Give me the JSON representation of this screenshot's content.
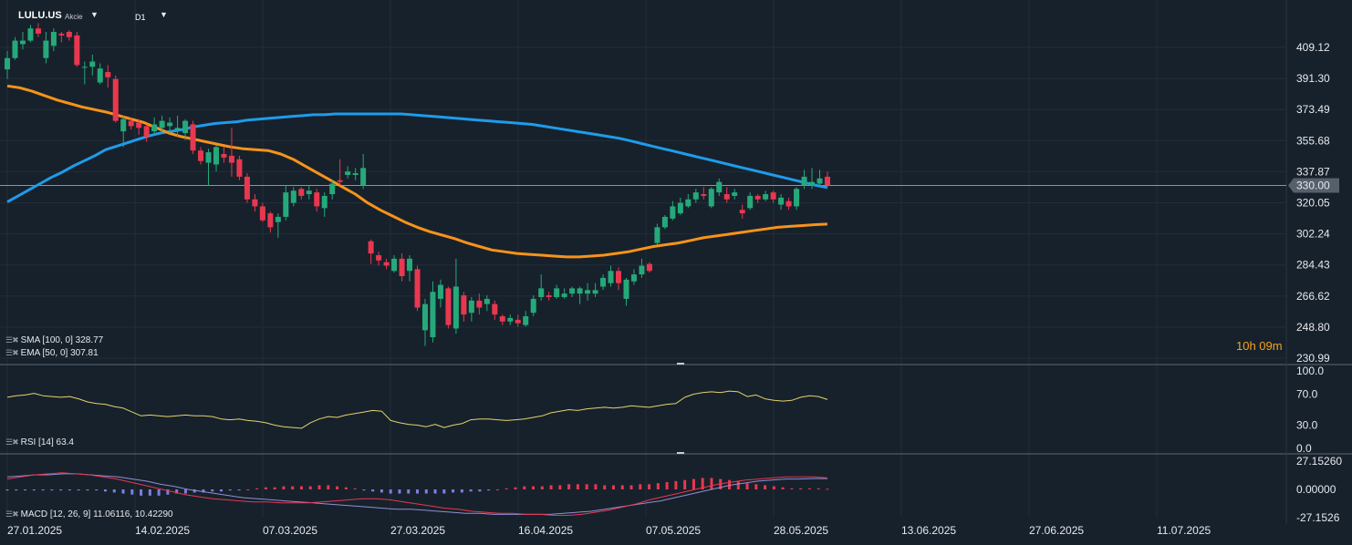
{
  "header": {
    "symbol": "LULU.US",
    "asset_type": "Akcie",
    "timeframe": "D1",
    "dropdown_glyph": "▼"
  },
  "colors": {
    "background": "#17212b",
    "up_candle": "#26a97a",
    "down_candle": "#e8384f",
    "sma": "#1e9ceb",
    "ema": "#f7931a",
    "rsi": "#e3d26f",
    "macd": "#e8384f",
    "signal": "#8e8fd6",
    "hist_pos": "#e8384f",
    "hist_neg": "#7b7fe0"
  },
  "indicators": {
    "sma": "SMA [100, 0]  328.77",
    "ema": "EMA [50, 0]  307.81",
    "rsi": "RSI [14]  63.4",
    "macd": "MACD [12, 26, 9]  11.06116,  10.42290"
  },
  "countdown": "10h 09m",
  "chart_data": [
    {
      "type": "candlestick",
      "title": "LULU.US",
      "x_tick_labels": [
        "27.01.2025",
        "14.02.2025",
        "07.03.2025",
        "27.03.2025",
        "16.04.2025",
        "07.05.2025",
        "28.05.2025",
        "13.06.2025",
        "27.06.2025",
        "11.07.2025"
      ],
      "y_tick_labels": [
        "409.12",
        "391.30",
        "373.49",
        "355.68",
        "337.87",
        "320.05",
        "302.24",
        "284.43",
        "266.62",
        "248.80",
        "230.99"
      ],
      "ylim": [
        230.99,
        409.12
      ],
      "current_price_label": "330.00",
      "current_price": 330.0,
      "candles": [
        [
          396.5,
          403.0,
          391.0,
          407.0
        ],
        [
          403.0,
          413.0,
          402.0,
          415.0
        ],
        [
          411.0,
          413.0,
          408.0,
          418.0
        ],
        [
          413.0,
          420.0,
          412.0,
          422.0
        ],
        [
          420.0,
          417.0,
          415.0,
          423.0
        ],
        [
          403.0,
          413.0,
          400.0,
          418.0
        ],
        [
          410.0,
          418.0,
          407.0,
          420.0
        ],
        [
          417.0,
          416.0,
          412.0,
          418.0
        ],
        [
          418.0,
          415.0,
          413.0,
          419.0
        ],
        [
          416.0,
          399.0,
          398.0,
          418.0
        ],
        [
          398.0,
          398.0,
          388.0,
          401.0
        ],
        [
          398.0,
          401.0,
          393.0,
          405.0
        ],
        [
          389.0,
          397.0,
          388.0,
          400.0
        ],
        [
          395.0,
          392.0,
          386.0,
          399.0
        ],
        [
          391.0,
          367.0,
          366.0,
          393.0
        ],
        [
          361.0,
          368.0,
          352.0,
          370.0
        ],
        [
          367.0,
          364.0,
          362.0,
          369.0
        ],
        [
          366.0,
          363.0,
          359.0,
          368.0
        ],
        [
          364.0,
          358.0,
          355.0,
          365.0
        ],
        [
          361.0,
          365.0,
          359.0,
          369.0
        ],
        [
          363.0,
          367.0,
          361.0,
          370.0
        ],
        [
          364.0,
          366.0,
          360.0,
          369.0
        ],
        [
          362.0,
          363.0,
          358.0,
          370.0
        ],
        [
          360.0,
          367.0,
          356.0,
          368.0
        ],
        [
          365.0,
          350.0,
          348.0,
          367.0
        ],
        [
          350.0,
          344.0,
          342.0,
          352.0
        ],
        [
          343.0,
          349.0,
          330.0,
          351.0
        ],
        [
          342.0,
          352.0,
          338.0,
          353.0
        ],
        [
          348.0,
          346.0,
          343.0,
          352.0
        ],
        [
          347.0,
          343.0,
          335.0,
          363.0
        ],
        [
          345.0,
          335.0,
          333.0,
          347.0
        ],
        [
          335.0,
          322.0,
          320.0,
          337.0
        ],
        [
          322.0,
          318.0,
          315.0,
          325.0
        ],
        [
          318.0,
          310.0,
          309.0,
          320.0
        ],
        [
          314.0,
          306.0,
          303.0,
          315.0
        ],
        [
          309.0,
          312.0,
          300.0,
          314.0
        ],
        [
          312.0,
          326.0,
          310.0,
          330.0
        ],
        [
          320.0,
          327.0,
          318.0,
          329.0
        ],
        [
          328.0,
          324.0,
          322.0,
          329.0
        ],
        [
          325.0,
          327.0,
          322.0,
          330.0
        ],
        [
          326.0,
          318.0,
          315.0,
          328.0
        ],
        [
          317.0,
          324.0,
          312.0,
          326.0
        ],
        [
          325.0,
          331.0,
          322.0,
          333.0
        ],
        [
          333.0,
          332.0,
          330.0,
          345.0
        ],
        [
          336.0,
          338.0,
          334.0,
          341.0
        ],
        [
          336.0,
          337.0,
          333.0,
          340.0
        ],
        [
          330.0,
          340.0,
          328.0,
          348.0
        ],
        [
          298.0,
          291.0,
          285.0,
          299.0
        ],
        [
          290.0,
          287.0,
          284.0,
          292.0
        ],
        [
          286.0,
          284.0,
          282.0,
          288.0
        ],
        [
          281.0,
          288.0,
          280.0,
          290.0
        ],
        [
          288.0,
          278.0,
          275.0,
          291.0
        ],
        [
          281.0,
          288.0,
          275.0,
          290.0
        ],
        [
          282.0,
          260.0,
          258.0,
          284.0
        ],
        [
          247.0,
          262.0,
          238.0,
          265.0
        ],
        [
          243.0,
          269.0,
          240.0,
          275.0
        ],
        [
          265.0,
          273.0,
          260.0,
          276.0
        ],
        [
          271.0,
          250.0,
          248.0,
          272.0
        ],
        [
          248.0,
          272.0,
          245.0,
          288.0
        ],
        [
          267.0,
          256.0,
          252.0,
          269.0
        ],
        [
          257.0,
          264.0,
          252.0,
          266.0
        ],
        [
          264.0,
          260.0,
          256.0,
          268.0
        ],
        [
          262.0,
          265.0,
          258.0,
          267.0
        ],
        [
          262.0,
          256.0,
          253.0,
          264.0
        ],
        [
          255.0,
          252.0,
          250.0,
          256.0
        ],
        [
          252.0,
          254.0,
          250.0,
          256.0
        ],
        [
          253.0,
          251.0,
          249.0,
          256.0
        ],
        [
          250.0,
          255.0,
          249.0,
          258.0
        ],
        [
          257.0,
          265.0,
          255.0,
          267.0
        ],
        [
          266.0,
          271.0,
          264.0,
          279.0
        ],
        [
          267.0,
          266.0,
          264.0,
          269.0
        ],
        [
          266.0,
          271.0,
          265.0,
          273.0
        ],
        [
          266.0,
          268.0,
          265.0,
          271.0
        ],
        [
          268.0,
          271.0,
          266.0,
          272.0
        ],
        [
          268.0,
          271.0,
          262.0,
          272.0
        ],
        [
          268.0,
          270.0,
          264.0,
          274.0
        ],
        [
          268.0,
          270.0,
          266.0,
          274.0
        ],
        [
          272.0,
          277.0,
          270.0,
          279.0
        ],
        [
          274.0,
          281.0,
          272.0,
          284.0
        ],
        [
          281.0,
          274.0,
          270.0,
          283.0
        ],
        [
          265.0,
          276.0,
          261.0,
          277.0
        ],
        [
          275.0,
          279.0,
          273.0,
          282.0
        ],
        [
          279.0,
          284.0,
          277.0,
          288.0
        ],
        [
          285.0,
          281.0,
          280.0,
          286.0
        ],
        [
          297.0,
          306.0,
          296.0,
          308.0
        ],
        [
          306.0,
          312.0,
          305.0,
          313.0
        ],
        [
          311.0,
          318.0,
          310.0,
          321.0
        ],
        [
          314.0,
          320.0,
          313.0,
          323.0
        ],
        [
          318.0,
          322.0,
          317.0,
          325.0
        ],
        [
          322.0,
          326.0,
          320.0,
          328.0
        ],
        [
          325.0,
          324.0,
          322.0,
          329.0
        ],
        [
          318.0,
          328.0,
          317.0,
          329.0
        ],
        [
          326.0,
          332.0,
          324.0,
          334.0
        ],
        [
          325.0,
          322.0,
          320.0,
          329.0
        ],
        [
          324.0,
          326.0,
          322.0,
          328.0
        ],
        [
          316.0,
          314.0,
          311.0,
          319.0
        ],
        [
          317.0,
          324.0,
          316.0,
          326.0
        ],
        [
          324.0,
          322.0,
          320.0,
          325.0
        ],
        [
          322.0,
          325.0,
          321.0,
          327.0
        ],
        [
          326.0,
          322.0,
          320.0,
          327.0
        ],
        [
          319.0,
          323.0,
          316.0,
          325.0
        ],
        [
          321.0,
          318.0,
          316.0,
          323.0
        ],
        [
          318.0,
          328.0,
          316.0,
          329.0
        ],
        [
          330.0,
          335.0,
          328.0,
          339.0
        ],
        [
          330.0,
          332.0,
          328.0,
          340.0
        ],
        [
          331.0,
          334.0,
          329.0,
          339.0
        ],
        [
          335.0,
          330.0,
          329.0,
          338.0
        ]
      ],
      "series": [
        {
          "name": "SMA [100, 0]",
          "values": [
            320.5,
            324.0,
            327.5,
            331.0,
            334.5,
            337.5,
            341.0,
            344.0,
            347.0,
            350.5,
            352.5,
            354.5,
            356.5,
            358.5,
            360.0,
            361.0,
            362.0,
            363.5,
            364.5,
            365.5,
            366.0,
            366.5,
            367.5,
            368.0,
            368.5,
            369.0,
            369.5,
            370.0,
            370.5,
            370.5,
            371.0,
            371.0,
            371.0,
            371.0,
            371.0,
            371.0,
            371.0,
            370.5,
            370.0,
            369.5,
            369.0,
            368.5,
            368.0,
            367.5,
            367.0,
            366.5,
            366.0,
            365.5,
            365.0,
            364.0,
            363.0,
            362.0,
            361.0,
            360.0,
            359.0,
            358.0,
            357.0,
            355.5,
            354.0,
            352.5,
            351.0,
            349.5,
            348.0,
            346.5,
            345.0,
            343.5,
            342.0,
            340.5,
            339.0,
            337.5,
            336.0,
            334.5,
            333.0,
            331.5,
            330.0,
            328.77
          ]
        },
        {
          "name": "EMA [50, 0]",
          "values": [
            387.0,
            386.0,
            384.0,
            381.5,
            379.0,
            377.0,
            375.0,
            373.5,
            372.0,
            370.0,
            368.0,
            366.0,
            363.0,
            360.0,
            358.0,
            356.5,
            355.0,
            353.5,
            352.0,
            351.0,
            350.5,
            350.0,
            348.0,
            345.0,
            341.0,
            337.0,
            333.0,
            329.0,
            325.0,
            320.0,
            316.0,
            312.5,
            309.0,
            306.0,
            303.5,
            301.5,
            299.5,
            297.0,
            295.0,
            293.0,
            292.0,
            291.0,
            290.5,
            290.0,
            289.5,
            289.0,
            289.0,
            289.5,
            290.0,
            291.0,
            292.0,
            293.5,
            295.0,
            296.0,
            297.0,
            298.5,
            300.0,
            301.0,
            302.0,
            303.0,
            304.0,
            305.0,
            306.0,
            306.5,
            307.0,
            307.5,
            307.81
          ]
        }
      ]
    },
    {
      "type": "line",
      "title": "RSI [14]",
      "ylim": [
        0.0,
        100.0
      ],
      "y_tick_labels": [
        "100.0",
        "70.0",
        "30.0",
        "0.0"
      ],
      "series": [
        {
          "name": "RSI [14]",
          "values": [
            66,
            68,
            69,
            71,
            68,
            67,
            66,
            67,
            64,
            60,
            58,
            57,
            54,
            52,
            47,
            42,
            43,
            42,
            41,
            42,
            43,
            42,
            42,
            41,
            38,
            37,
            38,
            36,
            35,
            33,
            30,
            28,
            27,
            26,
            33,
            38,
            41,
            40,
            43,
            45,
            47,
            49,
            48,
            36,
            33,
            31,
            30,
            28,
            31,
            27,
            30,
            32,
            37,
            38,
            38,
            37,
            36,
            37,
            38,
            40,
            42,
            46,
            48,
            50,
            49,
            51,
            52,
            53,
            52,
            53,
            55,
            54,
            53,
            55,
            57,
            58,
            66,
            70,
            72,
            73,
            72,
            74,
            73,
            67,
            69,
            64,
            62,
            61,
            62,
            66,
            68,
            67,
            63
          ]
        }
      ]
    },
    {
      "type": "bar",
      "title": "MACD [12, 26, 9]",
      "ylim": [
        -27.1526,
        27.1526
      ],
      "y_tick_labels": [
        "27.15260",
        "0.00000",
        "-27.1526"
      ],
      "series": [
        {
          "name": "MACD",
          "values": [
            10,
            12,
            14,
            15,
            16,
            15,
            14,
            12,
            10,
            7,
            4,
            1,
            -2,
            -5,
            -7,
            -9,
            -10,
            -11,
            -12,
            -12,
            -13,
            -13,
            -13,
            -12,
            -11,
            -10,
            -9,
            -9,
            -10,
            -12,
            -14,
            -16,
            -18,
            -19,
            -21,
            -22,
            -23,
            -23,
            -24,
            -24,
            -25,
            -25,
            -24,
            -22,
            -20,
            -17,
            -14,
            -10,
            -7,
            -4,
            -1,
            2,
            5,
            7,
            9,
            10,
            11,
            12,
            12,
            12,
            11.06
          ]
        },
        {
          "name": "Signal",
          "values": [
            12,
            13,
            14,
            14,
            15,
            15,
            14,
            13,
            12,
            10,
            8,
            5,
            3,
            0,
            -2,
            -4,
            -6,
            -8,
            -9,
            -10,
            -11,
            -12,
            -13,
            -14,
            -15,
            -16,
            -17,
            -18,
            -19,
            -19,
            -20,
            -21,
            -22,
            -23,
            -23,
            -24,
            -24,
            -24,
            -24,
            -24,
            -23,
            -22,
            -21,
            -19,
            -17,
            -15,
            -13,
            -11,
            -8,
            -5,
            -2,
            1,
            4,
            6,
            8,
            9,
            10,
            10,
            10.4,
            10.42
          ]
        },
        {
          "name": "Histogram",
          "values": [
            -1,
            -1,
            -1,
            -1,
            -1,
            -1,
            -1,
            -1,
            -1,
            -1,
            -1,
            -2,
            -3,
            -4,
            -5,
            -6,
            -6,
            -6,
            -5,
            -4,
            -4,
            -3,
            -3,
            -2,
            -2,
            -1,
            -1,
            0,
            1,
            2,
            2,
            3,
            3,
            3,
            3,
            4,
            4,
            3,
            2,
            1,
            -1,
            -2,
            -3,
            -4,
            -4,
            -4,
            -4,
            -4,
            -4,
            -4,
            -3,
            -3,
            -2,
            -2,
            -1,
            0,
            1,
            2,
            3,
            3,
            3,
            4,
            4,
            5,
            5,
            5,
            5,
            4,
            4,
            4,
            4,
            5,
            5,
            6,
            7,
            8,
            9,
            10,
            11,
            11,
            10,
            9,
            8,
            6,
            5,
            4,
            3,
            2,
            1,
            1,
            1,
            1,
            0.6
          ]
        }
      ]
    }
  ]
}
